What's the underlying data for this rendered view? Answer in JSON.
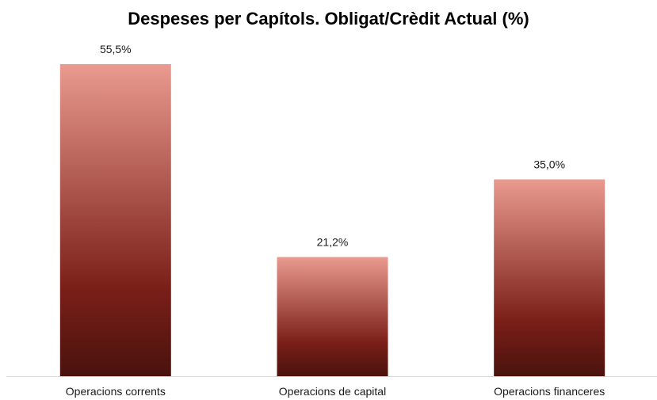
{
  "chart_data": {
    "type": "bar",
    "title": "Despeses per Capítols. Obligat/Crèdit Actual (%)",
    "categories": [
      "Operacions corrents",
      "Operacions de capital",
      "Operacions financeres"
    ],
    "values": [
      55.5,
      21.2,
      35.0
    ],
    "data_labels": [
      "55,5%",
      "21,2%",
      "35,0%"
    ],
    "xlabel": "",
    "ylabel": "",
    "ylim": [
      0,
      55.5
    ],
    "grid": false,
    "legend": "none",
    "bar_gradient": {
      "top": "#ea9a8f",
      "middle": "#7a1f18",
      "bottom": "#4a120d"
    },
    "axis_color": "#d9d9d9"
  }
}
